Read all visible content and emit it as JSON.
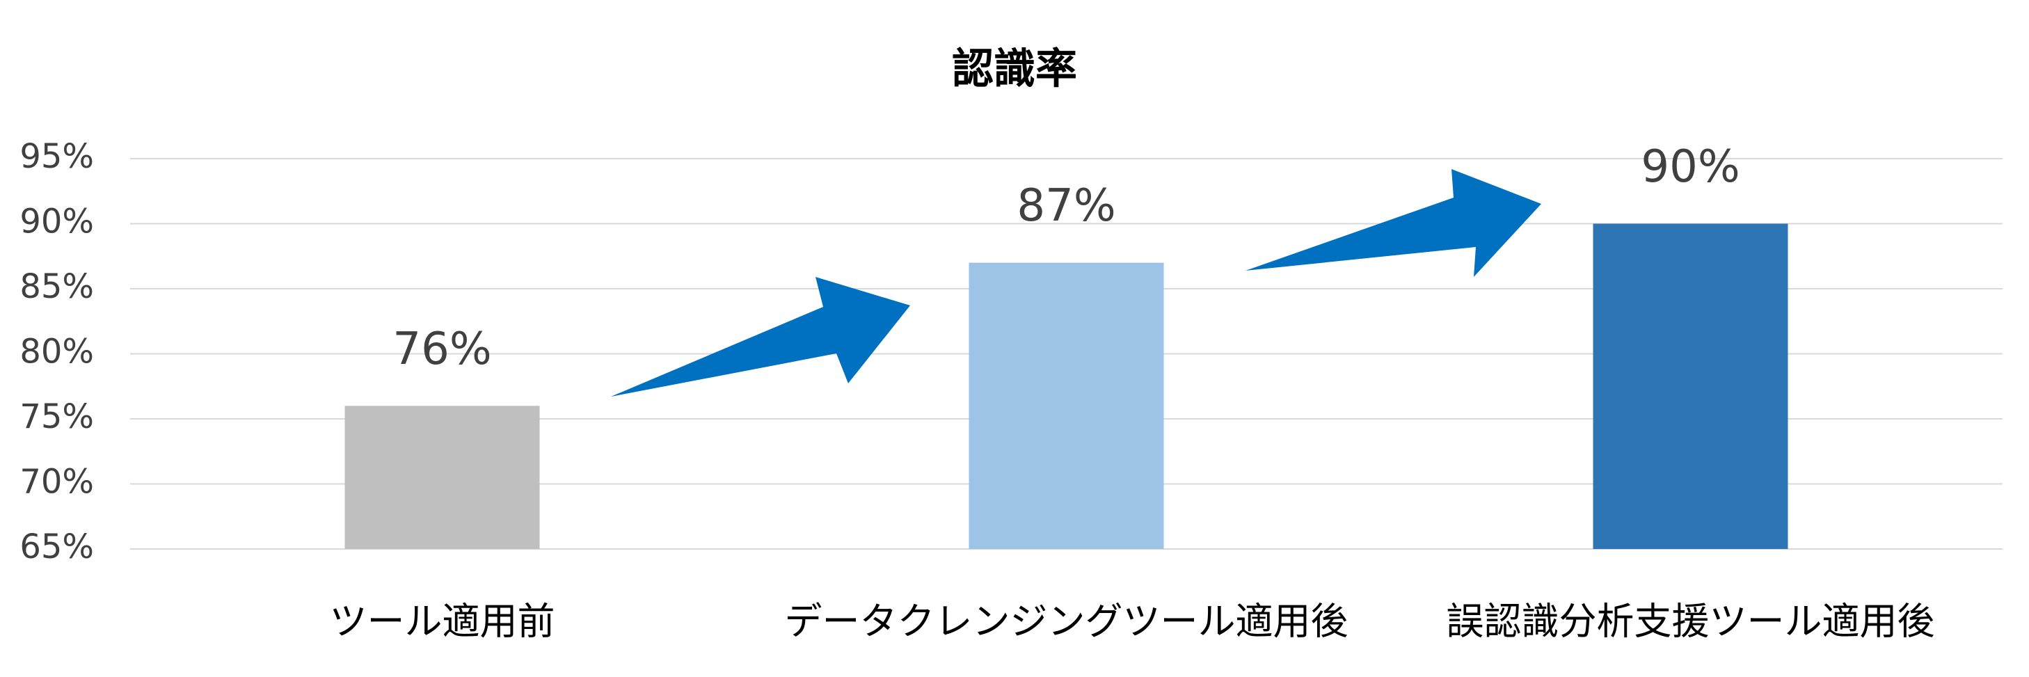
{
  "chart_data": {
    "type": "bar",
    "title": "認識率",
    "categories": [
      "ツール適用前",
      "データクレンジングツール適用後",
      "誤認識分析支援ツール適用後"
    ],
    "values": [
      76,
      87,
      90
    ],
    "value_labels": [
      "76%",
      "87%",
      "90%"
    ],
    "colors": [
      "#bfbfbf",
      "#9dc3e6",
      "#2e75b6"
    ],
    "ylim": [
      65,
      95
    ],
    "yticks": [
      {
        "value": 65,
        "label": "65%"
      },
      {
        "value": 70,
        "label": "70%"
      },
      {
        "value": 75,
        "label": "75%"
      },
      {
        "value": 80,
        "label": "80%"
      },
      {
        "value": 85,
        "label": "85%"
      },
      {
        "value": 90,
        "label": "90%"
      },
      {
        "value": 95,
        "label": "95%"
      }
    ],
    "grid": true
  }
}
